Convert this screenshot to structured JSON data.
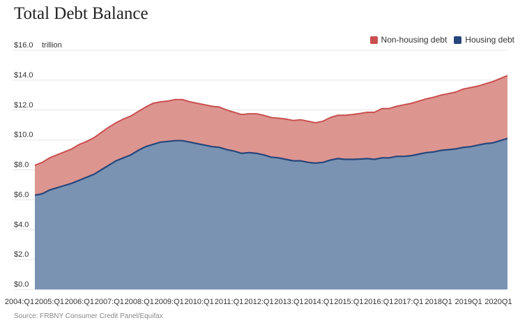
{
  "chart_data": {
    "type": "area",
    "title": "Total Debt Balance",
    "unit_label": "trillion",
    "source": "Source: FRBNY Consumer Credit Panel/Equifax",
    "ylim": [
      0,
      16
    ],
    "y_ticks": [
      "$0.0",
      "$2.0",
      "$4.0",
      "$6.0",
      "$8.0",
      "$10.0",
      "$12.0",
      "$14.0",
      "$16.0"
    ],
    "x_ticks": [
      "2004:Q1",
      "2005:Q1",
      "2006:Q1",
      "2007:Q1",
      "2008:Q1",
      "2009:Q1",
      "2010:Q1",
      "2011:Q1",
      "2012:Q1",
      "2013:Q1",
      "2014:Q1",
      "2015:Q1",
      "2016:Q1",
      "2017:Q1",
      "2018Q1",
      "2019Q1",
      "2020Q1"
    ],
    "x_start_year": 2004,
    "x_end_year": 2020,
    "stacked": true,
    "legend": [
      {
        "name": "Non-housing debt",
        "color": "#c8504f"
      },
      {
        "name": "Housing debt",
        "color": "#25467a"
      }
    ],
    "series": [
      {
        "name": "Housing debt",
        "fill": "#7a93b3",
        "line": "#25467a",
        "values": [
          6.3,
          6.4,
          6.65,
          6.8,
          6.95,
          7.1,
          7.3,
          7.5,
          7.7,
          8.0,
          8.3,
          8.6,
          8.8,
          9.0,
          9.3,
          9.55,
          9.7,
          9.85,
          9.9,
          9.95,
          9.95,
          9.85,
          9.75,
          9.65,
          9.55,
          9.5,
          9.35,
          9.25,
          9.1,
          9.15,
          9.1,
          9.0,
          8.85,
          8.8,
          8.7,
          8.6,
          8.6,
          8.5,
          8.45,
          8.5,
          8.65,
          8.75,
          8.7,
          8.7,
          8.72,
          8.75,
          8.7,
          8.8,
          8.8,
          8.9,
          8.9,
          8.95,
          9.05,
          9.15,
          9.2,
          9.3,
          9.35,
          9.4,
          9.5,
          9.55,
          9.65,
          9.75,
          9.8,
          9.95,
          10.1
        ]
      },
      {
        "name": "Non-housing debt",
        "fill": "#dd9590",
        "line": "#c8504f",
        "values": [
          2.0,
          2.1,
          2.15,
          2.2,
          2.25,
          2.3,
          2.4,
          2.4,
          2.45,
          2.5,
          2.55,
          2.55,
          2.6,
          2.6,
          2.6,
          2.65,
          2.75,
          2.7,
          2.7,
          2.75,
          2.75,
          2.7,
          2.7,
          2.7,
          2.7,
          2.7,
          2.65,
          2.6,
          2.6,
          2.6,
          2.65,
          2.65,
          2.65,
          2.65,
          2.7,
          2.7,
          2.75,
          2.75,
          2.7,
          2.75,
          2.85,
          2.9,
          2.95,
          3.0,
          3.05,
          3.1,
          3.15,
          3.3,
          3.3,
          3.35,
          3.45,
          3.5,
          3.55,
          3.6,
          3.65,
          3.7,
          3.75,
          3.8,
          3.9,
          3.95,
          3.95,
          4.0,
          4.1,
          4.15,
          4.2
        ]
      }
    ]
  }
}
